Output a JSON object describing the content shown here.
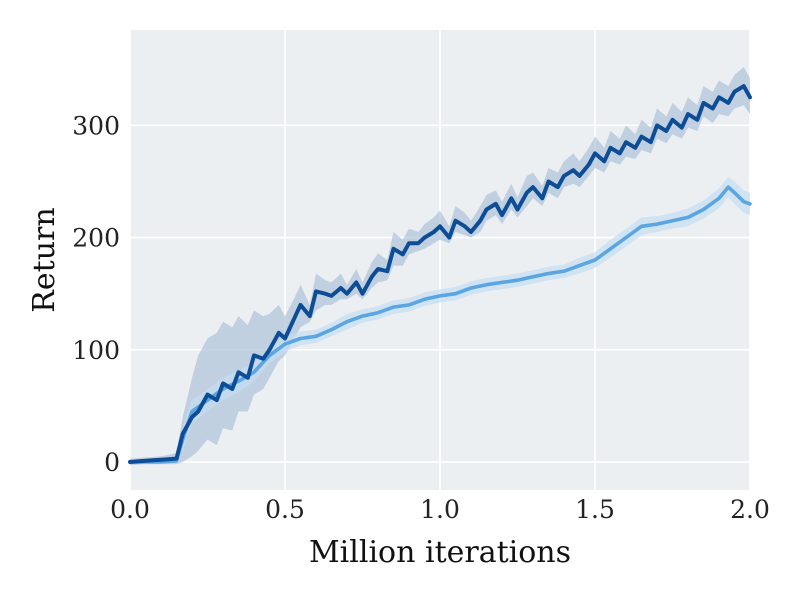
{
  "chart_data": {
    "type": "line",
    "title": "",
    "xlabel": "Million iterations",
    "ylabel": "Return",
    "xlim": [
      0.0,
      2.0
    ],
    "ylim": [
      -25,
      385
    ],
    "xticks": [
      0.0,
      0.5,
      1.0,
      1.5,
      2.0
    ],
    "xtick_labels": [
      "0.0",
      "0.5",
      "1.0",
      "1.5",
      "2.0"
    ],
    "yticks": [
      0,
      100,
      200,
      300
    ],
    "ytick_labels": [
      "0",
      "100",
      "200",
      "300"
    ],
    "grid": true,
    "legend": "none",
    "colors": {
      "plot_bg": "#eceff1",
      "grid": "#ffffff",
      "dark_line": "#0d4d96",
      "dark_band": "#a9bfd9",
      "light_line": "#5aa5e2",
      "light_band": "#c4def4"
    },
    "series": [
      {
        "color": "#0d4d96",
        "x": [
          0.0,
          0.05,
          0.1,
          0.15,
          0.17,
          0.2,
          0.22,
          0.25,
          0.28,
          0.3,
          0.33,
          0.35,
          0.38,
          0.4,
          0.43,
          0.45,
          0.48,
          0.5,
          0.53,
          0.55,
          0.58,
          0.6,
          0.63,
          0.65,
          0.68,
          0.7,
          0.73,
          0.75,
          0.78,
          0.8,
          0.83,
          0.85,
          0.88,
          0.9,
          0.93,
          0.95,
          0.98,
          1.0,
          1.03,
          1.05,
          1.08,
          1.1,
          1.13,
          1.15,
          1.18,
          1.2,
          1.23,
          1.25,
          1.28,
          1.3,
          1.33,
          1.35,
          1.38,
          1.4,
          1.43,
          1.45,
          1.48,
          1.5,
          1.53,
          1.55,
          1.58,
          1.6,
          1.63,
          1.65,
          1.68,
          1.7,
          1.73,
          1.75,
          1.78,
          1.8,
          1.83,
          1.85,
          1.88,
          1.9,
          1.93,
          1.95,
          1.98,
          2.0
        ],
        "y": [
          0,
          1,
          2,
          3,
          25,
          40,
          45,
          60,
          55,
          70,
          65,
          80,
          75,
          95,
          92,
          100,
          115,
          110,
          128,
          140,
          130,
          152,
          150,
          148,
          155,
          150,
          160,
          150,
          165,
          172,
          170,
          190,
          185,
          195,
          195,
          200,
          205,
          210,
          200,
          215,
          210,
          205,
          215,
          225,
          230,
          220,
          235,
          225,
          240,
          245,
          235,
          250,
          245,
          255,
          260,
          255,
          265,
          275,
          268,
          280,
          275,
          285,
          280,
          290,
          285,
          300,
          295,
          305,
          298,
          310,
          305,
          320,
          315,
          325,
          320,
          330,
          335,
          325
        ],
        "band_low": [
          -3,
          -2,
          -2,
          -2,
          0,
          5,
          10,
          20,
          15,
          30,
          28,
          45,
          45,
          60,
          65,
          75,
          90,
          95,
          110,
          120,
          125,
          135,
          140,
          140,
          145,
          145,
          150,
          145,
          155,
          160,
          162,
          175,
          175,
          185,
          188,
          190,
          195,
          198,
          195,
          205,
          202,
          200,
          205,
          215,
          220,
          212,
          225,
          218,
          228,
          235,
          228,
          240,
          235,
          245,
          248,
          245,
          255,
          262,
          258,
          268,
          265,
          272,
          270,
          278,
          275,
          288,
          284,
          292,
          288,
          298,
          295,
          308,
          302,
          310,
          308,
          315,
          318,
          310
        ],
        "band_high": [
          3,
          4,
          5,
          8,
          40,
          75,
          95,
          110,
          115,
          125,
          120,
          130,
          122,
          135,
          130,
          132,
          140,
          130,
          146,
          158,
          140,
          168,
          162,
          160,
          168,
          158,
          172,
          160,
          178,
          186,
          180,
          205,
          198,
          208,
          205,
          212,
          218,
          224,
          210,
          228,
          222,
          215,
          228,
          238,
          242,
          232,
          248,
          236,
          255,
          258,
          246,
          262,
          258,
          268,
          275,
          268,
          280,
          290,
          280,
          295,
          288,
          300,
          292,
          305,
          298,
          315,
          308,
          320,
          312,
          325,
          318,
          335,
          330,
          340,
          335,
          345,
          352,
          342
        ]
      },
      {
        "color": "#5aa5e2",
        "x": [
          0.0,
          0.05,
          0.1,
          0.15,
          0.17,
          0.2,
          0.25,
          0.3,
          0.35,
          0.4,
          0.45,
          0.5,
          0.55,
          0.6,
          0.65,
          0.7,
          0.75,
          0.8,
          0.85,
          0.9,
          0.95,
          1.0,
          1.05,
          1.1,
          1.15,
          1.2,
          1.25,
          1.3,
          1.35,
          1.4,
          1.45,
          1.5,
          1.55,
          1.6,
          1.65,
          1.7,
          1.75,
          1.8,
          1.85,
          1.9,
          1.93,
          1.95,
          1.98,
          2.0
        ],
        "y": [
          0,
          0,
          0,
          1,
          20,
          45,
          55,
          65,
          72,
          80,
          95,
          105,
          110,
          112,
          118,
          125,
          130,
          133,
          138,
          140,
          145,
          148,
          150,
          155,
          158,
          160,
          162,
          165,
          168,
          170,
          175,
          180,
          190,
          200,
          210,
          212,
          215,
          218,
          225,
          235,
          245,
          240,
          232,
          230
        ],
        "band_low": [
          -2,
          -2,
          -2,
          -1,
          10,
          35,
          45,
          55,
          62,
          72,
          88,
          98,
          104,
          106,
          112,
          118,
          124,
          127,
          132,
          134,
          139,
          142,
          144,
          149,
          152,
          154,
          156,
          159,
          162,
          164,
          168,
          173,
          182,
          192,
          202,
          205,
          208,
          210,
          217,
          226,
          236,
          230,
          222,
          220
        ],
        "band_high": [
          2,
          2,
          2,
          3,
          30,
          55,
          65,
          75,
          82,
          88,
          102,
          112,
          116,
          118,
          124,
          132,
          136,
          139,
          144,
          146,
          151,
          154,
          156,
          161,
          164,
          166,
          168,
          171,
          174,
          176,
          182,
          187,
          198,
          208,
          218,
          219,
          222,
          226,
          233,
          244,
          254,
          250,
          242,
          240
        ]
      }
    ]
  }
}
